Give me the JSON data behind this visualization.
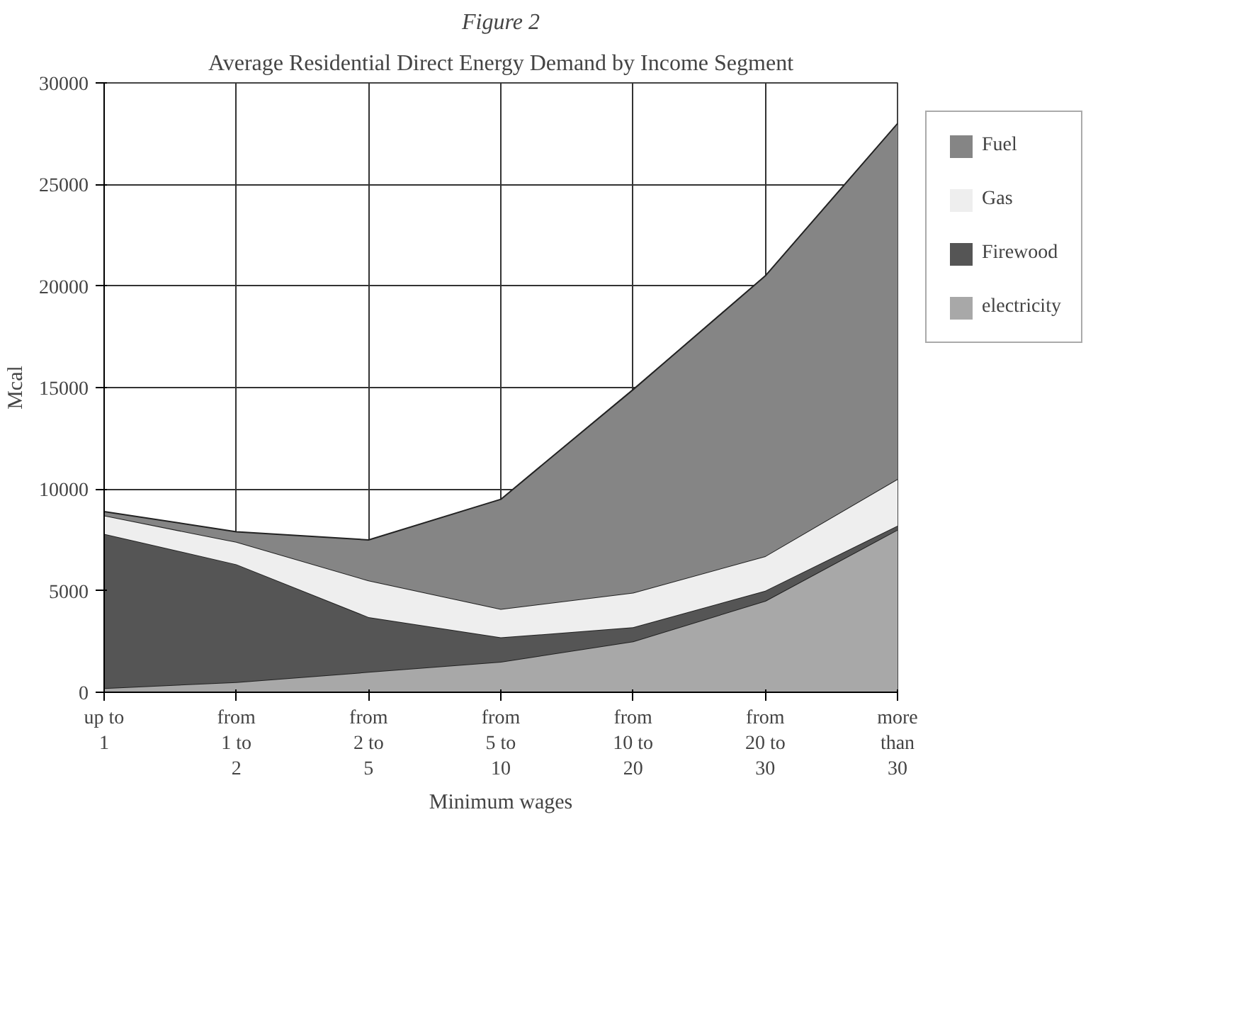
{
  "chart_data": {
    "type": "area",
    "stacked": true,
    "title": "Average Residential Direct Energy Demand by Income Segment",
    "xlabel": "Minimum wages",
    "ylabel": "Mcal",
    "annotations": [
      "Figure 2"
    ],
    "categories": [
      "up to\n1",
      "from\n1 to\n2",
      "from\n2 to\n5",
      "from\n5 to\n10",
      "from\n10 to\n20",
      "from\n20 to\n30",
      "more\nthan\n30"
    ],
    "series": [
      {
        "name": "electricity",
        "color": "#a8a8a8",
        "values": [
          200,
          500,
          1000,
          1500,
          2500,
          4500,
          8000
        ]
      },
      {
        "name": "Firewood",
        "color": "#555555",
        "values": [
          7600,
          5800,
          2700,
          1200,
          700,
          500,
          200
        ]
      },
      {
        "name": "Gas",
        "color": "#eeeeee",
        "values": [
          900,
          1100,
          1800,
          1400,
          1700,
          1700,
          2300
        ]
      },
      {
        "name": "Fuel",
        "color": "#858585",
        "values": [
          200,
          500,
          2000,
          5400,
          10000,
          13800,
          17500
        ]
      }
    ],
    "ylim": [
      0,
      30000
    ],
    "yticks": [
      0,
      5000,
      10000,
      15000,
      20000,
      25000,
      30000
    ],
    "grid": true,
    "legend": "right"
  }
}
